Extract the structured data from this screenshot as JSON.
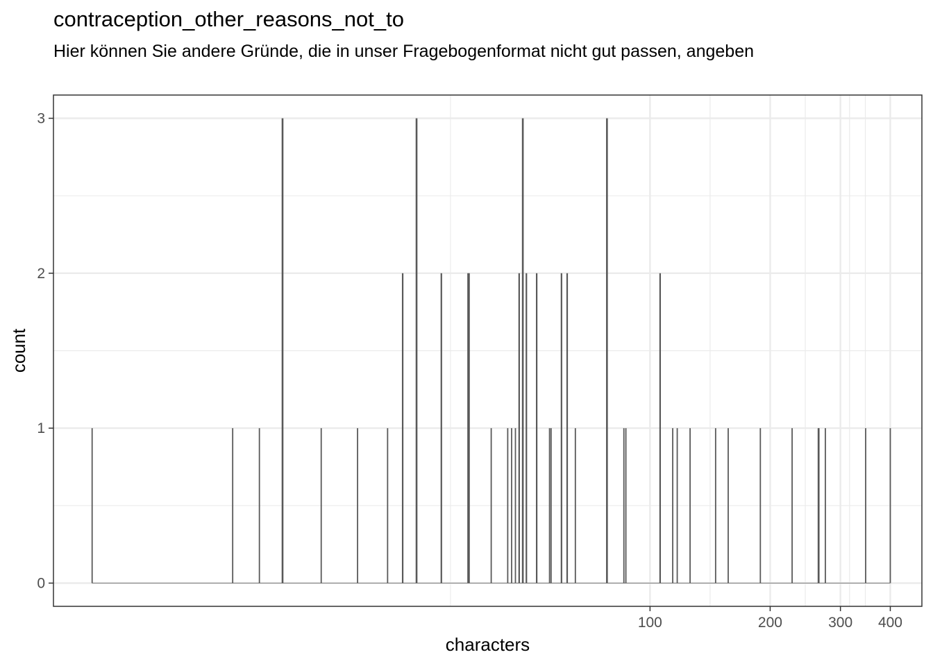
{
  "chart_data": {
    "type": "bar",
    "title": "contraception_other_reasons_not_to",
    "subtitle": "Hier können Sie andere Gründe, die in unser Fragebogenformat nicht gut passen, angeben",
    "xlabel": "characters",
    "ylabel": "count",
    "x_scale": "log10",
    "xlim": [
      3.2,
      480
    ],
    "ylim": [
      -0.15,
      3.15
    ],
    "x_ticks": [
      100,
      200,
      300,
      400
    ],
    "x_tick_labels": [
      "100",
      "200",
      "300",
      "400"
    ],
    "y_ticks": [
      0,
      1,
      2,
      3
    ],
    "y_tick_labels": [
      "0",
      "1",
      "2",
      "3"
    ],
    "grid": true,
    "bar_color": "#595959",
    "x": [
      4,
      9,
      10.5,
      12,
      15,
      18.5,
      22,
      24,
      26,
      30,
      35,
      35.2,
      40,
      44,
      45,
      46,
      47,
      48,
      49,
      52,
      56,
      56.5,
      60,
      62,
      65,
      78,
      86,
      87,
      106,
      114,
      117,
      126,
      146,
      157,
      189,
      227,
      264,
      265,
      275,
      347,
      400
    ],
    "values": [
      1,
      1,
      1,
      3,
      1,
      1,
      1,
      2,
      3,
      2,
      2,
      2,
      1,
      1,
      1,
      1,
      2,
      3,
      2,
      2,
      1,
      1,
      2,
      2,
      1,
      3,
      1,
      1,
      2,
      1,
      1,
      1,
      1,
      1,
      1,
      1,
      1,
      1,
      1,
      1,
      1
    ]
  }
}
